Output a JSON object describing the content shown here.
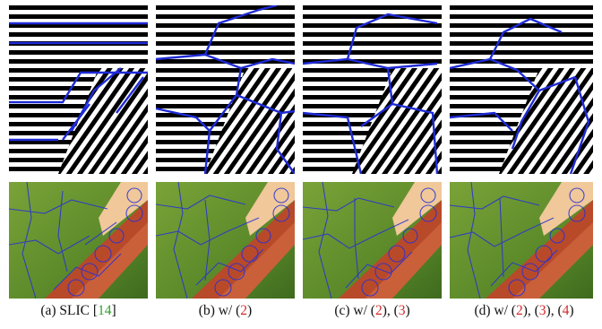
{
  "figure": {
    "panels": [
      {
        "id": "a",
        "caption_prefix": "(a) SLIC [",
        "ref": "14",
        "ref_color": "#2ca02c",
        "caption_suffix": "]"
      },
      {
        "id": "b",
        "caption_prefix": "(b) w/ (",
        "eqs": [
          "2"
        ],
        "caption_suffix": ")"
      },
      {
        "id": "c",
        "caption_prefix": "(c) w/ (",
        "eqs": [
          "2",
          "3"
        ],
        "caption_suffix": ")"
      },
      {
        "id": "d",
        "caption_prefix": "(d) w/ (",
        "eqs": [
          "2",
          "3",
          "4"
        ],
        "caption_suffix": ")"
      }
    ],
    "boundary_color": "#1f2bd6",
    "eq_ref_color": "#d62728",
    "cite_color": "#2ca02c"
  }
}
